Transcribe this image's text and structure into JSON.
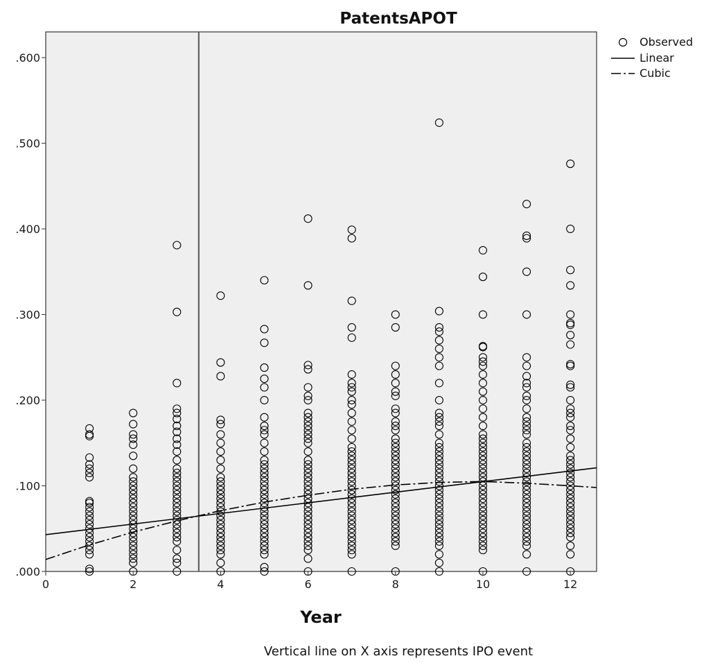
{
  "chart_data": {
    "type": "scatter",
    "title": "PatentsAPOT",
    "xlabel": "Year",
    "ylabel": "",
    "footnote": "Vertical line on X axis represents IPO event",
    "xlim": [
      0,
      12.6
    ],
    "ylim": [
      0,
      0.63
    ],
    "x_ticks": [
      0,
      2,
      4,
      6,
      8,
      10,
      12
    ],
    "x_tick_labels": [
      "0",
      "2",
      "4",
      "6",
      "8",
      "10",
      "12"
    ],
    "y_ticks": [
      0,
      0.1,
      0.2,
      0.3,
      0.4,
      0.5,
      0.6
    ],
    "y_tick_labels": [
      ".000",
      ".100",
      ".200",
      ".300",
      ".400",
      ".500",
      ".600"
    ],
    "grid": false,
    "plot_background": "#efefef",
    "legend": {
      "placement": "top-right",
      "entries": [
        {
          "label": "Observed",
          "style": "open-circle"
        },
        {
          "label": "Linear",
          "style": "solid"
        },
        {
          "label": "Cubic",
          "style": "dash-dot"
        }
      ]
    },
    "reference_line": {
      "axis": "x",
      "value": 3.5
    },
    "series": [
      {
        "name": "Observed",
        "type": "scatter",
        "points_by_year": [
          {
            "x": 1,
            "y": [
              0,
              0.003,
              0.02,
              0.025,
              0.03,
              0.035,
              0.04,
              0.045,
              0.05,
              0.055,
              0.06,
              0.065,
              0.07,
              0.075,
              0.08,
              0.082,
              0.11,
              0.115,
              0.12,
              0.125,
              0.133,
              0.158,
              0.16,
              0.167
            ]
          },
          {
            "x": 2,
            "y": [
              0,
              0.01,
              0.015,
              0.02,
              0.025,
              0.03,
              0.035,
              0.04,
              0.045,
              0.05,
              0.055,
              0.06,
              0.065,
              0.07,
              0.075,
              0.08,
              0.085,
              0.09,
              0.095,
              0.1,
              0.105,
              0.11,
              0.12,
              0.135,
              0.148,
              0.155,
              0.16,
              0.172,
              0.185
            ]
          },
          {
            "x": 3,
            "y": [
              0,
              0.01,
              0.015,
              0.025,
              0.035,
              0.04,
              0.045,
              0.05,
              0.055,
              0.06,
              0.065,
              0.07,
              0.075,
              0.08,
              0.085,
              0.09,
              0.095,
              0.1,
              0.105,
              0.11,
              0.115,
              0.12,
              0.13,
              0.14,
              0.148,
              0.155,
              0.163,
              0.17,
              0.178,
              0.185,
              0.19,
              0.22,
              0.303,
              0.381
            ]
          },
          {
            "x": 4,
            "y": [
              0,
              0.01,
              0.02,
              0.025,
              0.03,
              0.035,
              0.04,
              0.045,
              0.05,
              0.055,
              0.06,
              0.065,
              0.07,
              0.075,
              0.08,
              0.085,
              0.09,
              0.095,
              0.1,
              0.105,
              0.11,
              0.12,
              0.13,
              0.14,
              0.15,
              0.16,
              0.172,
              0.177,
              0.228,
              0.244,
              0.322
            ]
          },
          {
            "x": 5,
            "y": [
              0,
              0.005,
              0.02,
              0.025,
              0.03,
              0.035,
              0.04,
              0.045,
              0.05,
              0.055,
              0.06,
              0.065,
              0.07,
              0.075,
              0.08,
              0.085,
              0.09,
              0.095,
              0.1,
              0.105,
              0.11,
              0.115,
              0.12,
              0.125,
              0.13,
              0.14,
              0.15,
              0.16,
              0.165,
              0.17,
              0.18,
              0.2,
              0.215,
              0.225,
              0.238,
              0.267,
              0.283,
              0.34
            ]
          },
          {
            "x": 6,
            "y": [
              0,
              0.015,
              0.025,
              0.03,
              0.035,
              0.04,
              0.045,
              0.05,
              0.055,
              0.06,
              0.065,
              0.07,
              0.075,
              0.08,
              0.085,
              0.09,
              0.095,
              0.1,
              0.105,
              0.11,
              0.115,
              0.12,
              0.125,
              0.13,
              0.14,
              0.15,
              0.155,
              0.16,
              0.165,
              0.17,
              0.175,
              0.18,
              0.185,
              0.2,
              0.205,
              0.215,
              0.236,
              0.241,
              0.334,
              0.412
            ]
          },
          {
            "x": 7,
            "y": [
              0,
              0.02,
              0.025,
              0.03,
              0.035,
              0.04,
              0.045,
              0.05,
              0.055,
              0.06,
              0.065,
              0.07,
              0.075,
              0.08,
              0.085,
              0.09,
              0.095,
              0.1,
              0.105,
              0.11,
              0.115,
              0.12,
              0.125,
              0.13,
              0.135,
              0.14,
              0.145,
              0.155,
              0.165,
              0.175,
              0.185,
              0.195,
              0.2,
              0.21,
              0.215,
              0.22,
              0.23,
              0.273,
              0.285,
              0.316,
              0.389,
              0.399
            ]
          },
          {
            "x": 8,
            "y": [
              0,
              0.03,
              0.035,
              0.04,
              0.045,
              0.05,
              0.055,
              0.06,
              0.065,
              0.07,
              0.075,
              0.08,
              0.085,
              0.09,
              0.095,
              0.1,
              0.105,
              0.11,
              0.115,
              0.12,
              0.125,
              0.13,
              0.135,
              0.14,
              0.145,
              0.15,
              0.155,
              0.165,
              0.17,
              0.175,
              0.185,
              0.19,
              0.205,
              0.21,
              0.22,
              0.23,
              0.24,
              0.285,
              0.3
            ]
          },
          {
            "x": 9,
            "y": [
              0,
              0.01,
              0.02,
              0.03,
              0.035,
              0.04,
              0.045,
              0.05,
              0.055,
              0.06,
              0.065,
              0.07,
              0.075,
              0.08,
              0.085,
              0.09,
              0.095,
              0.1,
              0.105,
              0.11,
              0.115,
              0.12,
              0.125,
              0.13,
              0.135,
              0.14,
              0.145,
              0.15,
              0.16,
              0.17,
              0.175,
              0.18,
              0.185,
              0.2,
              0.22,
              0.24,
              0.25,
              0.26,
              0.27,
              0.28,
              0.285,
              0.304,
              0.524
            ]
          },
          {
            "x": 10,
            "y": [
              0,
              0.025,
              0.03,
              0.035,
              0.04,
              0.045,
              0.05,
              0.055,
              0.06,
              0.065,
              0.07,
              0.075,
              0.08,
              0.085,
              0.09,
              0.095,
              0.1,
              0.105,
              0.11,
              0.115,
              0.12,
              0.125,
              0.13,
              0.135,
              0.14,
              0.145,
              0.15,
              0.155,
              0.16,
              0.17,
              0.18,
              0.19,
              0.2,
              0.21,
              0.22,
              0.23,
              0.24,
              0.245,
              0.25,
              0.262,
              0.263,
              0.3,
              0.344,
              0.375
            ]
          },
          {
            "x": 11,
            "y": [
              0,
              0.02,
              0.03,
              0.035,
              0.04,
              0.045,
              0.05,
              0.055,
              0.06,
              0.065,
              0.07,
              0.075,
              0.08,
              0.085,
              0.09,
              0.095,
              0.1,
              0.105,
              0.11,
              0.115,
              0.12,
              0.125,
              0.13,
              0.135,
              0.14,
              0.145,
              0.15,
              0.16,
              0.165,
              0.17,
              0.175,
              0.18,
              0.19,
              0.2,
              0.205,
              0.215,
              0.22,
              0.228,
              0.24,
              0.25,
              0.3,
              0.35,
              0.389,
              0.392,
              0.429
            ]
          },
          {
            "x": 12,
            "y": [
              0,
              0.02,
              0.03,
              0.04,
              0.045,
              0.05,
              0.055,
              0.06,
              0.065,
              0.07,
              0.075,
              0.08,
              0.085,
              0.09,
              0.095,
              0.1,
              0.105,
              0.11,
              0.115,
              0.12,
              0.125,
              0.13,
              0.135,
              0.145,
              0.155,
              0.165,
              0.17,
              0.18,
              0.185,
              0.19,
              0.2,
              0.215,
              0.218,
              0.24,
              0.242,
              0.265,
              0.276,
              0.288,
              0.29,
              0.3,
              0.334,
              0.352,
              0.4,
              0.476
            ]
          }
        ]
      },
      {
        "name": "Linear",
        "type": "line",
        "style": "solid",
        "x": [
          0,
          12.6
        ],
        "y": [
          0.043,
          0.121
        ]
      },
      {
        "name": "Cubic",
        "type": "line",
        "style": "dash-dot",
        "x": [
          0,
          1,
          2,
          3,
          4,
          5,
          6,
          7,
          8,
          9,
          10,
          11,
          12,
          12.6
        ],
        "y": [
          0.014,
          0.031,
          0.046,
          0.059,
          0.071,
          0.081,
          0.089,
          0.096,
          0.101,
          0.104,
          0.105,
          0.103,
          0.1,
          0.098
        ]
      }
    ]
  }
}
